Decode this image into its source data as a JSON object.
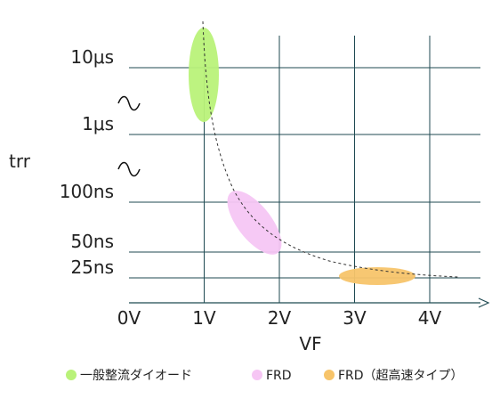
{
  "chart_data": {
    "type": "scatter",
    "xlabel": "VF",
    "ylabel": "trr",
    "x_ticks": [
      "0V",
      "1V",
      "2V",
      "3V",
      "4V"
    ],
    "y_ticks": [
      "10μs",
      "1μs",
      "100ns",
      "50ns",
      "25ns"
    ],
    "y_scale": "broken-log",
    "grid": true,
    "legend_position": "bottom",
    "series": [
      {
        "name": "一般整流ダイオード",
        "color": "#b9f279",
        "region": {
          "vf": [
            0.95,
            1.2
          ],
          "trr": [
            "1μs",
            "10μs+"
          ]
        }
      },
      {
        "name": "FRD",
        "color": "#f6c6f4",
        "region": {
          "vf": [
            1.3,
            2.0
          ],
          "trr": [
            "50ns",
            "100ns"
          ]
        }
      },
      {
        "name": "FRD（超高速タイプ）",
        "color": "#f7c46a",
        "region": {
          "vf": [
            2.85,
            3.8
          ],
          "trr": [
            "25ns",
            "25ns"
          ]
        }
      }
    ],
    "trend_curve": "dashed"
  }
}
